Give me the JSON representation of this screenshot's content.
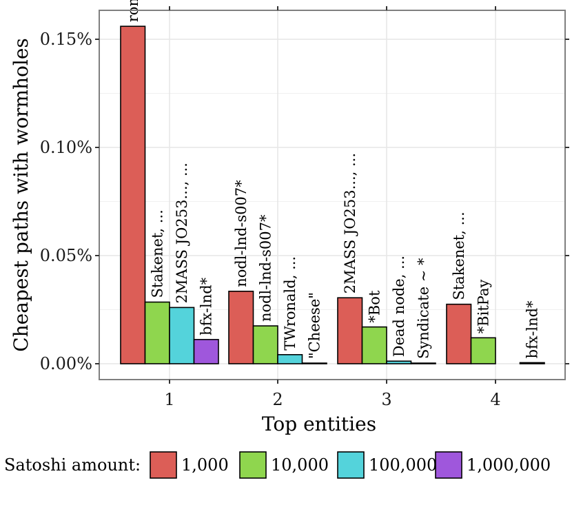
{
  "chart_data": {
    "type": "bar",
    "title": "",
    "xlabel": "Top entities",
    "ylabel": "Cheapest paths with wormholes",
    "categories": [
      "1",
      "2",
      "3",
      "4"
    ],
    "ylim": [
      0,
      0.00165
    ],
    "yticks": [
      {
        "value": 0.0,
        "label": "0.00%"
      },
      {
        "value": 0.0005,
        "label": "0.05%"
      },
      {
        "value": 0.001,
        "label": "0.10%"
      },
      {
        "value": 0.0015,
        "label": "0.15%"
      }
    ],
    "grid": true,
    "legend_position": "bottom",
    "legend_title": "Satoshi amount:",
    "series": [
      {
        "name": "1,000",
        "color": "#dc5e57",
        "values": [
          0.00156,
          0.000335,
          0.000305,
          0.000275
        ],
        "labels": [
          "rompert.com",
          "nodl-lnd-s007*",
          "2MASS JO253..., ...",
          "Stakenet, ..."
        ]
      },
      {
        "name": "10,000",
        "color": "#8fd64e",
        "values": [
          0.000285,
          0.000175,
          0.00017,
          0.00012
        ],
        "labels": [
          "Stakenet, ...",
          "nodl-lnd-s007*",
          "*Bot",
          "*BitPay"
        ]
      },
      {
        "name": "100,000",
        "color": "#54d3db",
        "values": [
          0.00026,
          4.2e-05,
          1.2e-05,
          null
        ],
        "labels": [
          "2MASS JO253..., ...",
          "TWronald, ...",
          "Dead node, ...",
          null
        ]
      },
      {
        "name": "1,000,000",
        "color": "#9f57dc",
        "values": [
          0.000112,
          3e-06,
          3e-06,
          5e-06
        ],
        "labels": [
          "bfx-lnd*",
          "\"Cheese\"",
          "Syndicate ~ *",
          "bfx-lnd*"
        ]
      }
    ]
  }
}
